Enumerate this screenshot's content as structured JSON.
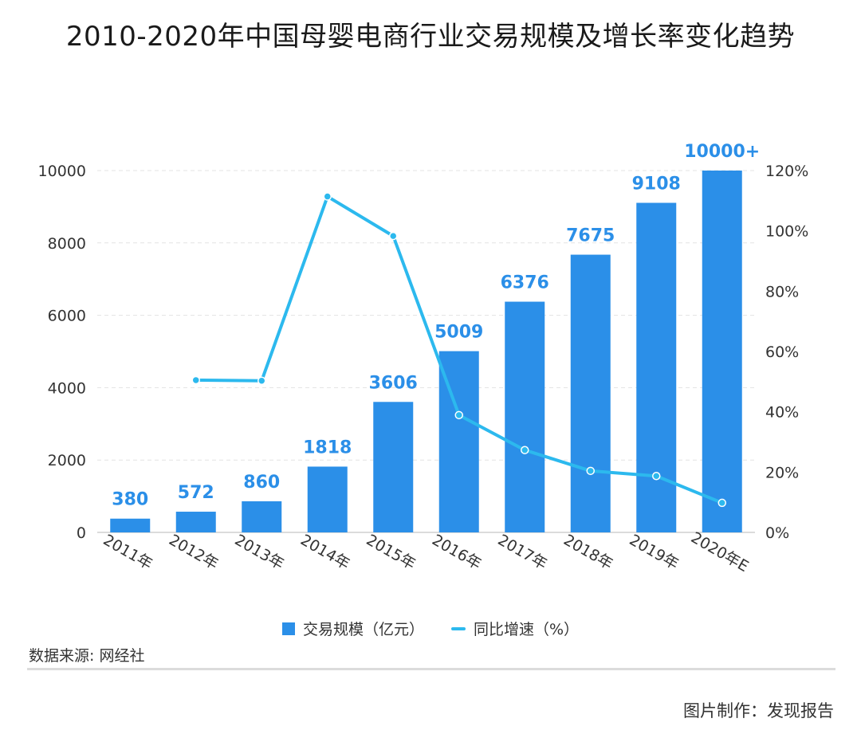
{
  "title": "2010-2020年中国母婴电商行业交易规模及增长率变化趋势",
  "chart_data": {
    "type": "bar",
    "categories": [
      "2011年",
      "2012年",
      "2013年",
      "2014年",
      "2015年",
      "2016年",
      "2017年",
      "2018年",
      "2019年",
      "2020年E"
    ],
    "series": [
      {
        "name": "交易规模（亿元）",
        "type": "bar",
        "axis": "left",
        "values": [
          380,
          572,
          860,
          1818,
          3606,
          5009,
          6376,
          7675,
          9108,
          10000
        ],
        "labels": [
          "380",
          "572",
          "860",
          "1818",
          "3606",
          "5009",
          "6376",
          "7675",
          "9108",
          "10000+"
        ]
      },
      {
        "name": "同比增速（%）",
        "type": "line",
        "axis": "right",
        "values": [
          null,
          50.5,
          50.3,
          111.4,
          98.3,
          38.9,
          27.3,
          20.4,
          18.7,
          9.8
        ]
      }
    ],
    "y_left": {
      "range": [
        0,
        10000
      ],
      "ticks": [
        "0",
        "2000",
        "4000",
        "6000",
        "8000",
        "10000"
      ]
    },
    "y_right": {
      "range": [
        0,
        120
      ],
      "ticks": [
        "0%",
        "20%",
        "40%",
        "60%",
        "80%",
        "100%",
        "120%"
      ]
    },
    "grid": true,
    "legend_position": "bottom",
    "colors": {
      "bar": "#2b8fe8",
      "line": "#2cb9ee",
      "label": "#2b8fe8"
    }
  },
  "source": "数据来源: 网经社",
  "credit": "图片制作：发现报告"
}
